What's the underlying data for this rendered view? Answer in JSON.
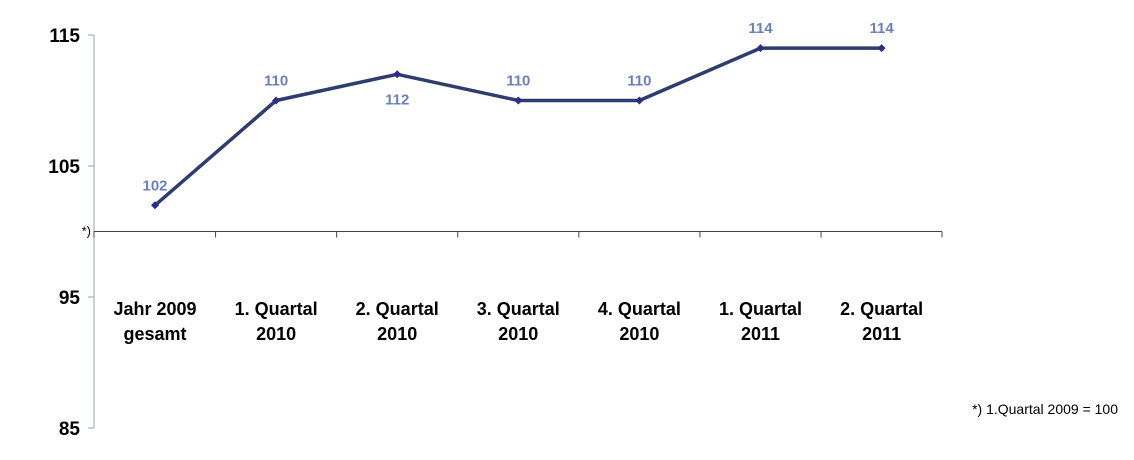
{
  "chart_data": {
    "type": "line",
    "categories": [
      "Jahr 2009\ngesamt",
      "1. Quartal\n2010",
      "2. Quartal\n2010",
      "3. Quartal\n2010",
      "4. Quartal\n2010",
      "1. Quartal\n2011",
      "2. Quartal\n2011"
    ],
    "series": [
      {
        "values": [
          102,
          110,
          112,
          110,
          110,
          114,
          114
        ],
        "data_labels": [
          "102",
          "110",
          "112",
          "110",
          "110",
          "114",
          "114"
        ],
        "label_side": [
          "above",
          "above",
          "below",
          "above",
          "above",
          "above",
          "above"
        ]
      }
    ],
    "yticks": [
      85,
      95,
      105,
      115
    ],
    "ylim": [
      85,
      115
    ],
    "x_axis_at": 100,
    "axis_marker": "*)",
    "grid": false,
    "legend": "none",
    "colors": {
      "line": "#2e3d6e",
      "marker": "#2e2a8c",
      "data_label": "#6b7fbf",
      "axis": "#9aa3a6"
    }
  },
  "footnote": "*) 1.Quartal 2009 = 100"
}
